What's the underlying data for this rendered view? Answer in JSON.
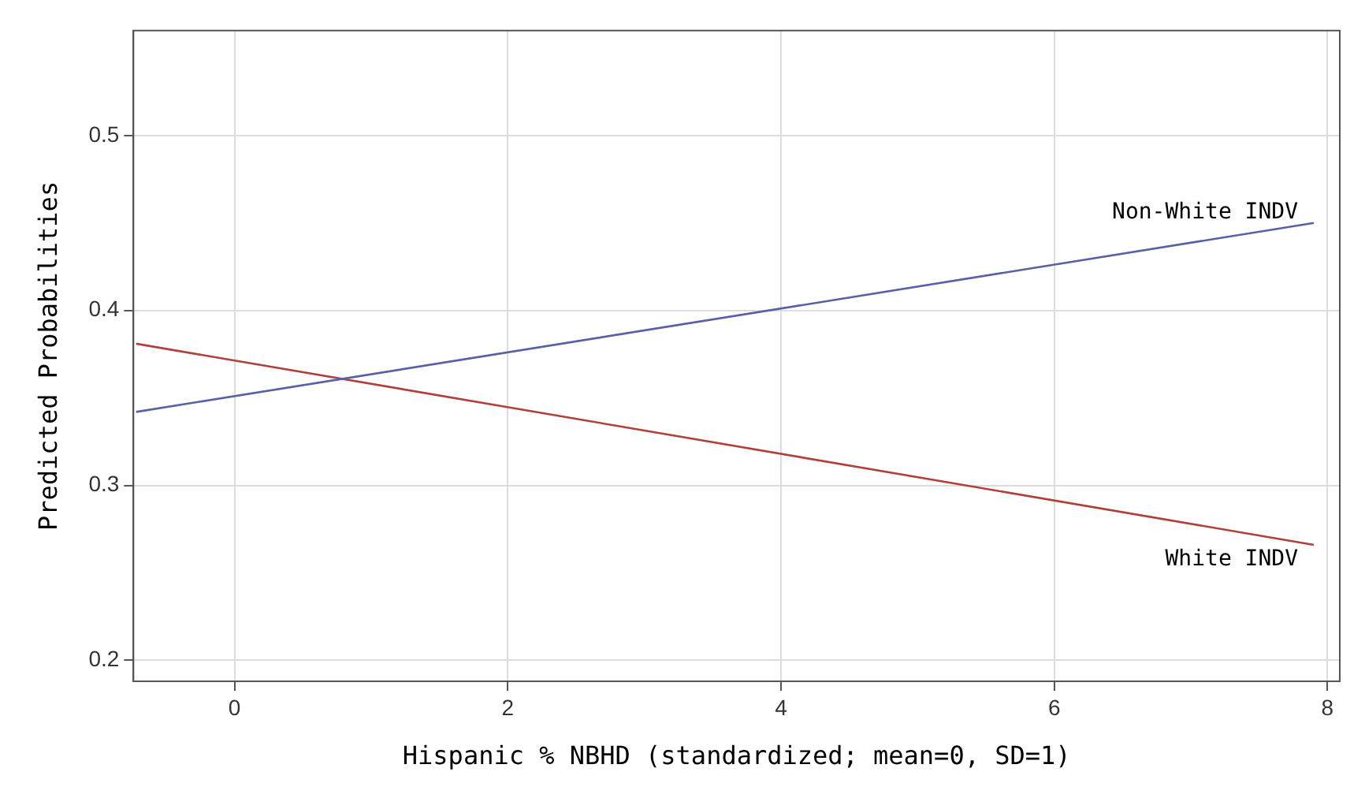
{
  "chart_data": {
    "type": "line",
    "xlabel": "Hispanic % NBHD (standardized; mean=0, SD=1)",
    "ylabel": "Predicted Probabilities",
    "xlim": [
      -0.74,
      8.09
    ],
    "xticks": [
      0,
      2,
      4,
      6,
      8
    ],
    "ylim": [
      0.188,
      0.56
    ],
    "yticks": [
      0.2,
      0.3,
      0.4,
      0.5
    ],
    "grid": true,
    "legend": false,
    "marker": "none",
    "line_style": "solid",
    "x": [
      -0.72,
      7.9
    ],
    "series": [
      {
        "name": "Non-White INDV",
        "color": "#5a5fa8",
        "values": [
          0.342,
          0.45
        ]
      },
      {
        "name": "White INDV",
        "color": "#b0403a",
        "values": [
          0.381,
          0.266
        ]
      }
    ]
  }
}
